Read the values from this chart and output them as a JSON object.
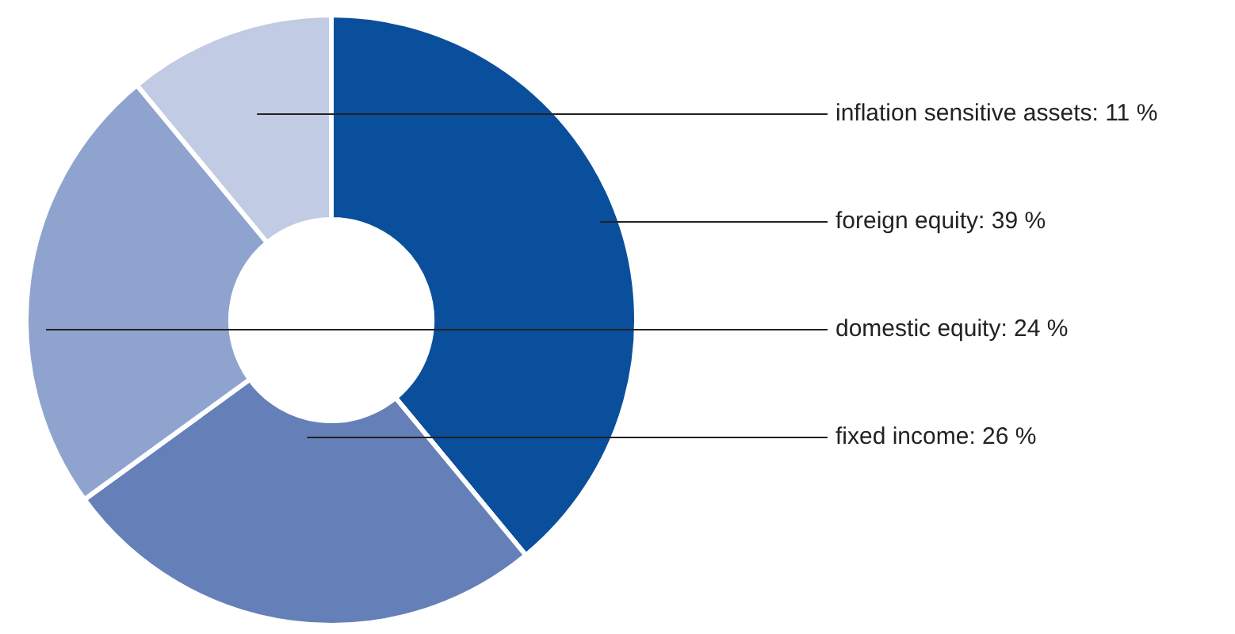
{
  "chart_data": {
    "type": "donut",
    "categories": [
      "foreign equity",
      "fixed income",
      "domestic equity",
      "inflation sensitive assets"
    ],
    "values": [
      39,
      26,
      24,
      11
    ],
    "value_labels": [
      "39 %",
      "26 %",
      "24 %",
      "11 %"
    ],
    "colors": [
      "#0a4f9c",
      "#6580b8",
      "#8fa3cf",
      "#c1cbe4"
    ],
    "legend": false
  }
}
